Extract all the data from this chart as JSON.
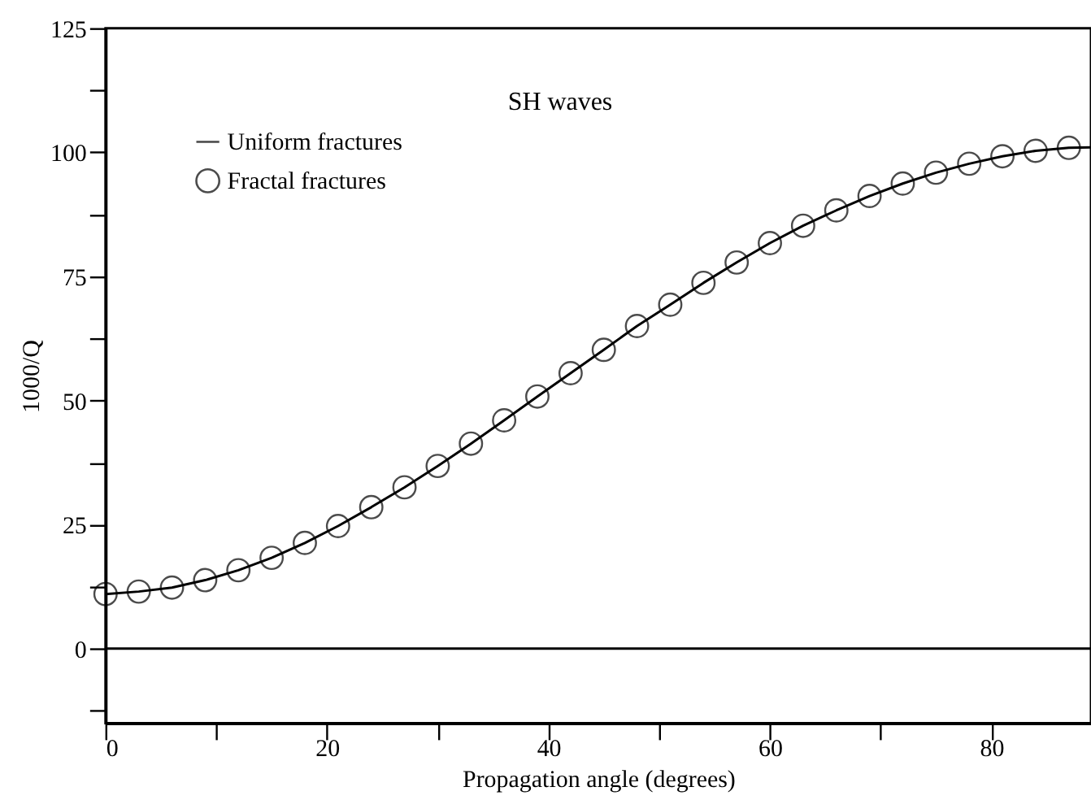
{
  "chart_data": {
    "type": "line",
    "title": "SH waves",
    "xlabel": "Propagation angle (degrees)",
    "ylabel": "1000/Q",
    "xlim": [
      0,
      89
    ],
    "ylim": [
      -15,
      125
    ],
    "xticks": [
      0,
      {
        "value": 10,
        "label": null
      },
      20,
      {
        "value": 30,
        "label": null
      },
      40,
      {
        "value": 50,
        "label": null
      },
      60,
      {
        "value": 70,
        "label": null
      },
      80
    ],
    "yticks": [
      {
        "value": -12.5,
        "label": null
      },
      0,
      {
        "value": 12.5,
        "label": null
      },
      25,
      {
        "value": 37.5,
        "label": null
      },
      50,
      {
        "value": 62.5,
        "label": null
      },
      75,
      {
        "value": 87.5,
        "label": null
      },
      100,
      {
        "value": 112.5,
        "label": null
      },
      125
    ],
    "grid": false,
    "legend": "top left",
    "line_style": "solid",
    "ref_lines": [
      {
        "axis": "y",
        "value": 0,
        "color": "#000000"
      }
    ],
    "series": [
      {
        "name": "Uniform fractures",
        "color": "#000000",
        "marker": "none",
        "x": [
          0,
          3,
          6,
          9,
          12,
          15,
          18,
          21,
          24,
          27,
          30,
          33,
          36,
          39,
          42,
          45,
          48,
          51,
          54,
          57,
          60,
          63,
          66,
          69,
          72,
          75,
          78,
          81,
          84,
          87,
          89
        ],
        "values": [
          11,
          11.5,
          12.3,
          13.8,
          15.8,
          18.3,
          21.3,
          24.7,
          28.5,
          32.5,
          36.8,
          41.3,
          46,
          50.8,
          55.5,
          60.2,
          65,
          69.3,
          73.7,
          77.8,
          81.7,
          85.2,
          88.3,
          91.2,
          93.7,
          95.9,
          97.7,
          99.2,
          100.3,
          100.9,
          101
        ]
      },
      {
        "name": "Fractal fractures",
        "type": "scatter",
        "color": "#000000",
        "marker": "circle",
        "x": [
          0,
          3,
          6,
          9,
          12,
          15,
          18,
          21,
          24,
          27,
          30,
          33,
          36,
          39,
          42,
          45,
          48,
          51,
          54,
          57,
          60,
          63,
          66,
          69,
          72,
          75,
          78,
          81,
          84,
          87
        ],
        "values": [
          11,
          11.5,
          12.3,
          13.8,
          15.8,
          18.3,
          21.3,
          24.7,
          28.5,
          32.5,
          36.8,
          41.3,
          46,
          50.8,
          55.5,
          60.2,
          65,
          69.3,
          73.7,
          77.8,
          81.7,
          85.2,
          88.3,
          91.2,
          93.7,
          95.9,
          97.7,
          99.2,
          100.3,
          100.9
        ]
      }
    ]
  }
}
